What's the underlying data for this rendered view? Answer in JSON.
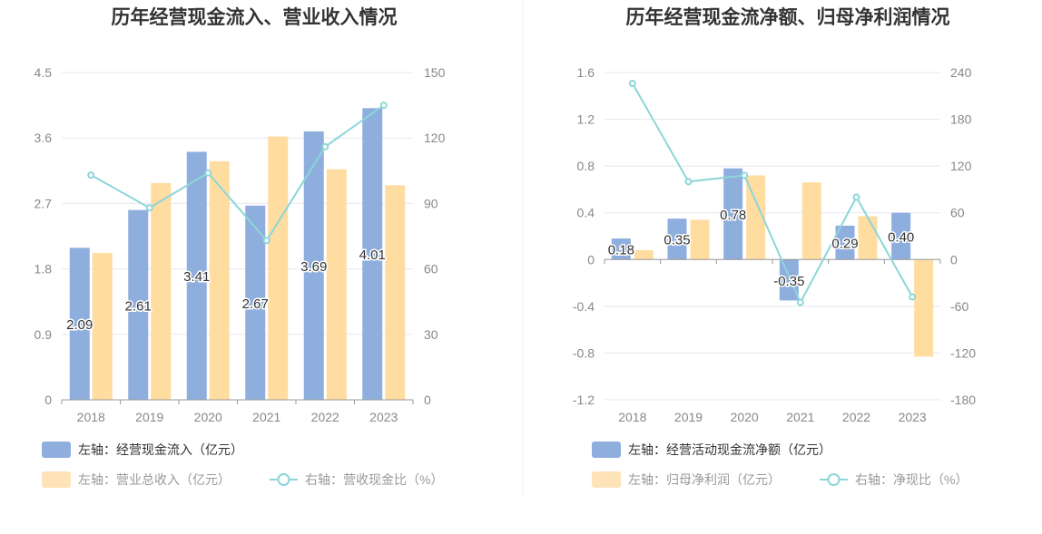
{
  "colors": {
    "bar_primary": "#8eaedd",
    "bar_secondary": "#ffdca0",
    "line": "#8cd6d9",
    "axis": "#999999",
    "grid": "#e5e8f0",
    "legend_active": "#333333",
    "legend_inactive": "#999999"
  },
  "chart_data": [
    {
      "type": "bar",
      "title": "历年经营现金流入、营业收入情况",
      "categories": [
        "2018",
        "2019",
        "2020",
        "2021",
        "2022",
        "2023"
      ],
      "left_axis": {
        "ticks": [
          "0",
          "0.9",
          "1.8",
          "2.7",
          "3.6",
          "4.5"
        ],
        "min": 0,
        "max": 4.5
      },
      "right_axis": {
        "ticks": [
          "0",
          "30",
          "60",
          "90",
          "120",
          "150"
        ],
        "min": 0,
        "max": 150
      },
      "series": [
        {
          "name": "左轴：经营现金流入（亿元）",
          "type": "bar",
          "axis": "left",
          "values": [
            2.09,
            2.61,
            3.41,
            2.67,
            3.69,
            4.01
          ],
          "labels": [
            "2.09",
            "2.61",
            "3.41",
            "2.67",
            "3.69",
            "4.01"
          ]
        },
        {
          "name": "左轴：营业总收入（亿元）",
          "type": "bar",
          "axis": "left",
          "values": [
            2.02,
            2.98,
            3.28,
            3.62,
            3.17,
            2.95
          ]
        },
        {
          "name": "右轴：营收现金比（%）",
          "type": "line",
          "axis": "right",
          "values": [
            103,
            88,
            104,
            73,
            116,
            135
          ]
        }
      ]
    },
    {
      "type": "bar",
      "title": "历年经营现金流净额、归母净利润情况",
      "categories": [
        "2018",
        "2019",
        "2020",
        "2021",
        "2022",
        "2023"
      ],
      "left_axis": {
        "ticks": [
          "-1.2",
          "-0.8",
          "-0.4",
          "0",
          "0.4",
          "0.8",
          "1.2",
          "1.6"
        ],
        "min": -1.2,
        "max": 1.6
      },
      "right_axis": {
        "ticks": [
          "-180",
          "-120",
          "-60",
          "0",
          "60",
          "120",
          "180",
          "240"
        ],
        "min": -180,
        "max": 240
      },
      "series": [
        {
          "name": "左轴：经营活动现金流净额（亿元）",
          "type": "bar",
          "axis": "left",
          "values": [
            0.18,
            0.35,
            0.78,
            -0.35,
            0.29,
            0.4
          ],
          "labels": [
            "0.18",
            "0.35",
            "0.78",
            "-0.35",
            "0.29",
            "0.40"
          ]
        },
        {
          "name": "左轴：归母净利润（亿元）",
          "type": "bar",
          "axis": "left",
          "values": [
            0.08,
            0.34,
            0.72,
            0.66,
            0.37,
            -0.83
          ]
        },
        {
          "name": "右轴：净现比（%）",
          "type": "line",
          "axis": "right",
          "values": [
            226,
            100,
            108,
            -55,
            80,
            -48
          ]
        }
      ]
    }
  ]
}
